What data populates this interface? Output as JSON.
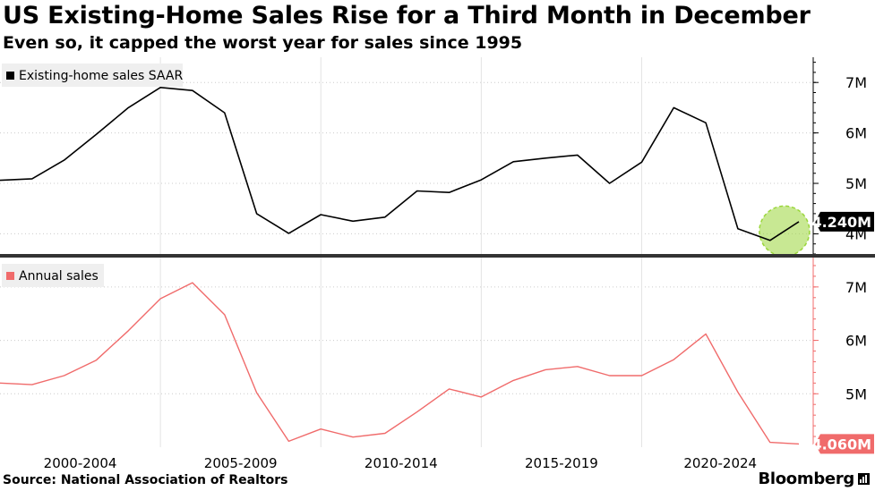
{
  "header": {
    "title": "US Existing-Home Sales Rise for a Third Month in December",
    "subtitle": "Even so, it capped the worst year for sales since 1995"
  },
  "footer": {
    "source": "Source: National Association of Realtors",
    "brand": "Bloomberg"
  },
  "colors": {
    "top_series": "#000000",
    "bottom_series": "#f06b6b",
    "highlight": "#9ad63a",
    "grid": "#cccccc"
  },
  "chart_data": [
    {
      "type": "line",
      "legend": "top-left",
      "grid": true,
      "ylim": [
        3.6,
        7.5
      ],
      "yticks": [
        4,
        5,
        6,
        7
      ],
      "ytick_labels": [
        "4M",
        "5M",
        "6M",
        "7M"
      ],
      "series": [
        {
          "name": "Existing-home sales SAAR",
          "x": [
            1999,
            2000,
            2001,
            2002,
            2003,
            2004,
            2005,
            2006,
            2007,
            2008,
            2009,
            2010,
            2011,
            2012,
            2013,
            2014,
            2015,
            2016,
            2017,
            2018,
            2019,
            2020,
            2021,
            2022,
            2023,
            2023.9
          ],
          "values": [
            5.06,
            5.09,
            5.46,
            5.97,
            6.5,
            6.9,
            6.84,
            6.4,
            4.4,
            4.01,
            4.38,
            4.25,
            4.33,
            4.85,
            4.82,
            5.07,
            5.43,
            5.5,
            5.56,
            5.0,
            5.42,
            6.5,
            6.2,
            4.1,
            3.87,
            4.24
          ]
        }
      ],
      "last_value_label": "4.240M",
      "highlight_point": "last"
    },
    {
      "type": "line",
      "legend": "top-left",
      "grid": true,
      "ylim": [
        4.0,
        7.55
      ],
      "yticks": [
        5,
        6,
        7
      ],
      "ytick_labels": [
        "5M",
        "6M",
        "7M"
      ],
      "categories": [
        "2000-2004",
        "2005-2009",
        "2010-2014",
        "2015-2019",
        "2020-2024"
      ],
      "series": [
        {
          "name": "Annual sales",
          "x": [
            1999,
            2000,
            2001,
            2002,
            2003,
            2004,
            2005,
            2006,
            2007,
            2008,
            2009,
            2010,
            2011,
            2012,
            2013,
            2014,
            2015,
            2016,
            2017,
            2018,
            2019,
            2020,
            2021,
            2022,
            2023,
            2023.9
          ],
          "values": [
            5.2,
            5.17,
            5.34,
            5.63,
            6.18,
            6.78,
            7.08,
            6.48,
            5.02,
            4.11,
            4.34,
            4.19,
            4.26,
            4.66,
            5.09,
            4.94,
            5.25,
            5.45,
            5.51,
            5.34,
            5.34,
            5.64,
            6.12,
            5.03,
            4.09,
            4.06
          ]
        }
      ],
      "last_value_label": "4.060M"
    }
  ]
}
